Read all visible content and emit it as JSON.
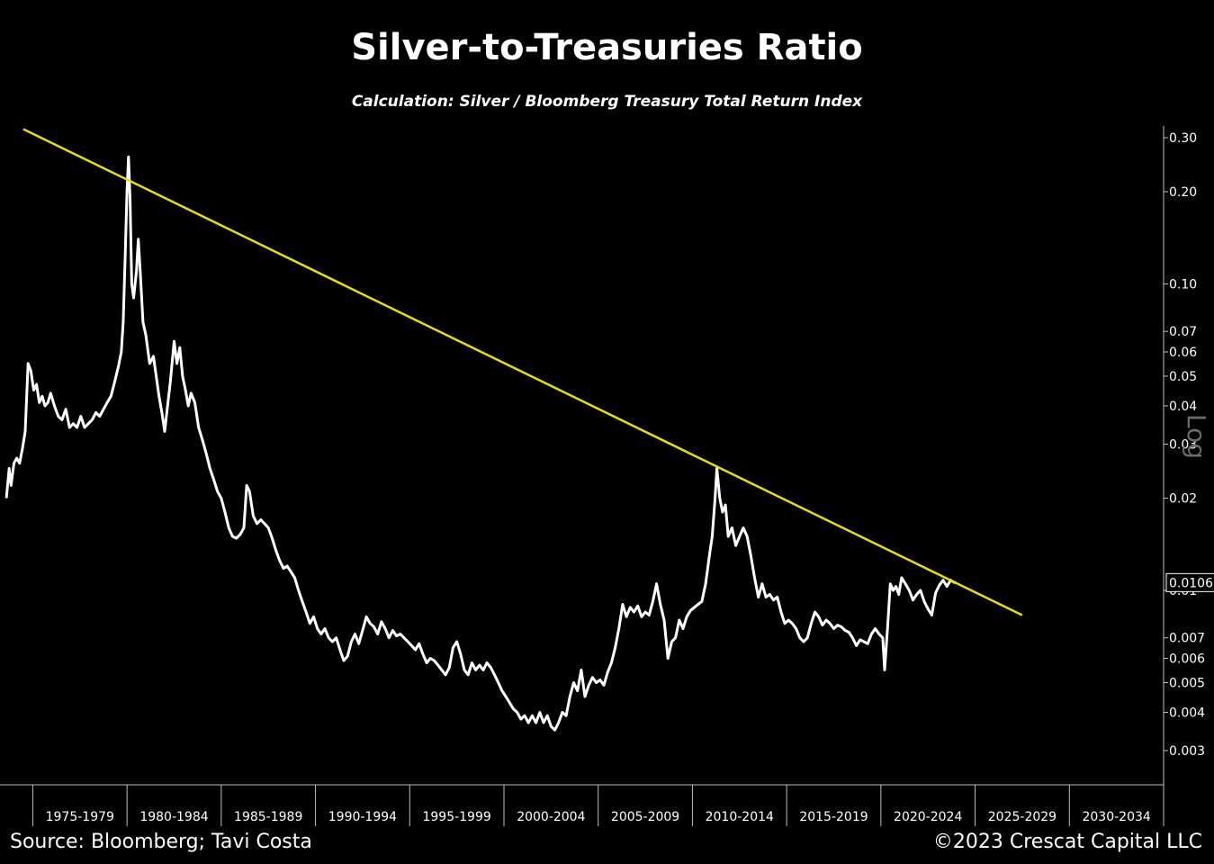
{
  "header": {
    "title": "Silver-to-Treasuries Ratio",
    "subtitle": "Calculation: Silver / Bloomberg Treasury Total Return Index"
  },
  "footer": {
    "source": "Source: Bloomberg; Tavi Costa",
    "copyright": "©2023 Crescat Capital LLC"
  },
  "colors": {
    "background": "#000000",
    "series": "#ffffff",
    "trendline": "#e8e000",
    "axis": "#bfbfbf"
  },
  "chart_data": {
    "type": "line",
    "title": "Silver-to-Treasuries Ratio",
    "subtitle": "Calculation: Silver / Bloomberg Treasury Total Return Index",
    "xlabel": "",
    "ylabel": "",
    "yscale": "log",
    "scale_label": "Log",
    "xlim": [
      1973.5,
      2035
    ],
    "ylim": [
      0.0026,
      0.34
    ],
    "x_categories": [
      "1975-1979",
      "1980-1984",
      "1985-1989",
      "1990-1994",
      "1995-1999",
      "2000-2004",
      "2005-2009",
      "2010-2014",
      "2015-2019",
      "2020-2024",
      "2025-2029",
      "2030-2034"
    ],
    "y_ticks": [
      {
        "value": 0.3,
        "label": "0.30"
      },
      {
        "value": 0.2,
        "label": "0.20"
      },
      {
        "value": 0.1,
        "label": "0.10"
      },
      {
        "value": 0.07,
        "label": "0.07"
      },
      {
        "value": 0.06,
        "label": "0.06"
      },
      {
        "value": 0.05,
        "label": "0.05"
      },
      {
        "value": 0.04,
        "label": "0.04"
      },
      {
        "value": 0.03,
        "label": "0.03"
      },
      {
        "value": 0.02,
        "label": "0.02"
      },
      {
        "value": 0.01,
        "label": "0.01"
      },
      {
        "value": 0.007,
        "label": "0.007"
      },
      {
        "value": 0.006,
        "label": "0.006"
      },
      {
        "value": 0.005,
        "label": "0.005"
      },
      {
        "value": 0.004,
        "label": "0.004"
      },
      {
        "value": 0.003,
        "label": "0.003"
      }
    ],
    "last_value_label": "0.0106",
    "last_value": 0.0106,
    "grid": false,
    "series": [
      {
        "values": [
          [
            1973.6,
            0.02
          ],
          [
            1973.75,
            0.025
          ],
          [
            1973.85,
            0.022
          ],
          [
            1974.0,
            0.026
          ],
          [
            1974.15,
            0.027
          ],
          [
            1974.3,
            0.026
          ],
          [
            1974.45,
            0.029
          ],
          [
            1974.6,
            0.033
          ],
          [
            1974.75,
            0.055
          ],
          [
            1974.9,
            0.052
          ],
          [
            1975.05,
            0.045
          ],
          [
            1975.2,
            0.047
          ],
          [
            1975.35,
            0.041
          ],
          [
            1975.5,
            0.043
          ],
          [
            1975.65,
            0.04
          ],
          [
            1975.8,
            0.041
          ],
          [
            1975.95,
            0.044
          ],
          [
            1976.15,
            0.04
          ],
          [
            1976.35,
            0.037
          ],
          [
            1976.55,
            0.036
          ],
          [
            1976.75,
            0.039
          ],
          [
            1976.95,
            0.034
          ],
          [
            1977.15,
            0.035
          ],
          [
            1977.35,
            0.034
          ],
          [
            1977.55,
            0.037
          ],
          [
            1977.75,
            0.034
          ],
          [
            1977.95,
            0.035
          ],
          [
            1978.15,
            0.036
          ],
          [
            1978.35,
            0.038
          ],
          [
            1978.55,
            0.037
          ],
          [
            1978.75,
            0.039
          ],
          [
            1978.95,
            0.041
          ],
          [
            1979.15,
            0.043
          ],
          [
            1979.35,
            0.048
          ],
          [
            1979.55,
            0.054
          ],
          [
            1979.7,
            0.06
          ],
          [
            1979.8,
            0.075
          ],
          [
            1979.9,
            0.12
          ],
          [
            1980.0,
            0.2
          ],
          [
            1980.08,
            0.26
          ],
          [
            1980.16,
            0.19
          ],
          [
            1980.25,
            0.1
          ],
          [
            1980.35,
            0.09
          ],
          [
            1980.5,
            0.11
          ],
          [
            1980.6,
            0.14
          ],
          [
            1980.7,
            0.11
          ],
          [
            1980.85,
            0.075
          ],
          [
            1981.0,
            0.068
          ],
          [
            1981.2,
            0.055
          ],
          [
            1981.4,
            0.058
          ],
          [
            1981.55,
            0.05
          ],
          [
            1981.7,
            0.043
          ],
          [
            1981.85,
            0.038
          ],
          [
            1982.0,
            0.033
          ],
          [
            1982.15,
            0.04
          ],
          [
            1982.3,
            0.048
          ],
          [
            1982.5,
            0.065
          ],
          [
            1982.65,
            0.055
          ],
          [
            1982.8,
            0.062
          ],
          [
            1982.95,
            0.05
          ],
          [
            1983.1,
            0.045
          ],
          [
            1983.25,
            0.04
          ],
          [
            1983.4,
            0.044
          ],
          [
            1983.6,
            0.041
          ],
          [
            1983.8,
            0.034
          ],
          [
            1984.0,
            0.031
          ],
          [
            1984.2,
            0.028
          ],
          [
            1984.4,
            0.025
          ],
          [
            1984.6,
            0.023
          ],
          [
            1984.8,
            0.021
          ],
          [
            1985.0,
            0.02
          ],
          [
            1985.2,
            0.018
          ],
          [
            1985.4,
            0.016
          ],
          [
            1985.6,
            0.015
          ],
          [
            1985.8,
            0.0148
          ],
          [
            1986.0,
            0.0152
          ],
          [
            1986.2,
            0.016
          ],
          [
            1986.35,
            0.022
          ],
          [
            1986.5,
            0.021
          ],
          [
            1986.7,
            0.0175
          ],
          [
            1986.9,
            0.0165
          ],
          [
            1987.1,
            0.017
          ],
          [
            1987.3,
            0.0165
          ],
          [
            1987.5,
            0.016
          ],
          [
            1987.7,
            0.0148
          ],
          [
            1987.9,
            0.0135
          ],
          [
            1988.1,
            0.0125
          ],
          [
            1988.3,
            0.0118
          ],
          [
            1988.5,
            0.012
          ],
          [
            1988.7,
            0.0115
          ],
          [
            1988.9,
            0.011
          ],
          [
            1989.1,
            0.01
          ],
          [
            1989.3,
            0.0092
          ],
          [
            1989.5,
            0.0085
          ],
          [
            1989.7,
            0.0078
          ],
          [
            1989.9,
            0.0082
          ],
          [
            1990.1,
            0.0075
          ],
          [
            1990.3,
            0.0072
          ],
          [
            1990.5,
            0.0075
          ],
          [
            1990.7,
            0.007
          ],
          [
            1990.9,
            0.0068
          ],
          [
            1991.1,
            0.007
          ],
          [
            1991.3,
            0.0064
          ],
          [
            1991.5,
            0.0059
          ],
          [
            1991.7,
            0.0061
          ],
          [
            1991.9,
            0.0068
          ],
          [
            1992.1,
            0.0072
          ],
          [
            1992.3,
            0.0067
          ],
          [
            1992.5,
            0.0074
          ],
          [
            1992.7,
            0.0082
          ],
          [
            1992.9,
            0.0078
          ],
          [
            1993.1,
            0.0076
          ],
          [
            1993.3,
            0.0072
          ],
          [
            1993.5,
            0.0079
          ],
          [
            1993.7,
            0.0075
          ],
          [
            1993.9,
            0.007
          ],
          [
            1994.1,
            0.0074
          ],
          [
            1994.3,
            0.0071
          ],
          [
            1994.5,
            0.0072
          ],
          [
            1994.7,
            0.007
          ],
          [
            1994.9,
            0.0068
          ],
          [
            1995.1,
            0.0066
          ],
          [
            1995.3,
            0.0064
          ],
          [
            1995.5,
            0.0067
          ],
          [
            1995.7,
            0.0062
          ],
          [
            1995.9,
            0.0058
          ],
          [
            1996.1,
            0.006
          ],
          [
            1996.3,
            0.0059
          ],
          [
            1996.5,
            0.0057
          ],
          [
            1996.7,
            0.0055
          ],
          [
            1996.9,
            0.0053
          ],
          [
            1997.1,
            0.0056
          ],
          [
            1997.3,
            0.0065
          ],
          [
            1997.5,
            0.0068
          ],
          [
            1997.7,
            0.0062
          ],
          [
            1997.9,
            0.0055
          ],
          [
            1998.1,
            0.0053
          ],
          [
            1998.3,
            0.0058
          ],
          [
            1998.5,
            0.0055
          ],
          [
            1998.7,
            0.0057
          ],
          [
            1998.9,
            0.0055
          ],
          [
            1999.1,
            0.0058
          ],
          [
            1999.3,
            0.0056
          ],
          [
            1999.5,
            0.0053
          ],
          [
            1999.7,
            0.005
          ],
          [
            1999.9,
            0.0047
          ],
          [
            2000.1,
            0.0045
          ],
          [
            2000.3,
            0.0043
          ],
          [
            2000.5,
            0.0041
          ],
          [
            2000.7,
            0.004
          ],
          [
            2000.9,
            0.0038
          ],
          [
            2001.1,
            0.0039
          ],
          [
            2001.3,
            0.0037
          ],
          [
            2001.5,
            0.0039
          ],
          [
            2001.7,
            0.0037
          ],
          [
            2001.9,
            0.004
          ],
          [
            2002.1,
            0.0037
          ],
          [
            2002.3,
            0.0039
          ],
          [
            2002.5,
            0.0036
          ],
          [
            2002.7,
            0.0035
          ],
          [
            2002.9,
            0.0037
          ],
          [
            2003.1,
            0.004
          ],
          [
            2003.3,
            0.0039
          ],
          [
            2003.5,
            0.0045
          ],
          [
            2003.7,
            0.005
          ],
          [
            2003.9,
            0.0047
          ],
          [
            2004.1,
            0.0055
          ],
          [
            2004.3,
            0.0045
          ],
          [
            2004.5,
            0.0049
          ],
          [
            2004.7,
            0.0052
          ],
          [
            2004.9,
            0.005
          ],
          [
            2005.1,
            0.0051
          ],
          [
            2005.3,
            0.0049
          ],
          [
            2005.5,
            0.0054
          ],
          [
            2005.7,
            0.0058
          ],
          [
            2005.9,
            0.0065
          ],
          [
            2006.1,
            0.0075
          ],
          [
            2006.3,
            0.009
          ],
          [
            2006.5,
            0.0082
          ],
          [
            2006.7,
            0.0088
          ],
          [
            2006.9,
            0.0085
          ],
          [
            2007.1,
            0.0089
          ],
          [
            2007.3,
            0.0082
          ],
          [
            2007.5,
            0.0085
          ],
          [
            2007.7,
            0.0083
          ],
          [
            2007.9,
            0.0092
          ],
          [
            2008.1,
            0.0105
          ],
          [
            2008.3,
            0.009
          ],
          [
            2008.5,
            0.008
          ],
          [
            2008.7,
            0.006
          ],
          [
            2008.9,
            0.0068
          ],
          [
            2009.1,
            0.007
          ],
          [
            2009.3,
            0.008
          ],
          [
            2009.5,
            0.0075
          ],
          [
            2009.7,
            0.0082
          ],
          [
            2009.9,
            0.0086
          ],
          [
            2010.1,
            0.0088
          ],
          [
            2010.3,
            0.009
          ],
          [
            2010.5,
            0.0092
          ],
          [
            2010.7,
            0.0105
          ],
          [
            2010.9,
            0.013
          ],
          [
            2011.05,
            0.015
          ],
          [
            2011.2,
            0.02
          ],
          [
            2011.3,
            0.025
          ],
          [
            2011.45,
            0.02
          ],
          [
            2011.6,
            0.018
          ],
          [
            2011.75,
            0.019
          ],
          [
            2011.9,
            0.015
          ],
          [
            2012.1,
            0.016
          ],
          [
            2012.3,
            0.014
          ],
          [
            2012.5,
            0.015
          ],
          [
            2012.7,
            0.016
          ],
          [
            2012.9,
            0.015
          ],
          [
            2013.1,
            0.013
          ],
          [
            2013.3,
            0.011
          ],
          [
            2013.5,
            0.0095
          ],
          [
            2013.7,
            0.0105
          ],
          [
            2013.9,
            0.0095
          ],
          [
            2014.1,
            0.0097
          ],
          [
            2014.3,
            0.0093
          ],
          [
            2014.5,
            0.0095
          ],
          [
            2014.7,
            0.0085
          ],
          [
            2014.9,
            0.0078
          ],
          [
            2015.1,
            0.008
          ],
          [
            2015.3,
            0.0078
          ],
          [
            2015.5,
            0.0075
          ],
          [
            2015.7,
            0.007
          ],
          [
            2015.9,
            0.0068
          ],
          [
            2016.1,
            0.007
          ],
          [
            2016.3,
            0.0078
          ],
          [
            2016.5,
            0.0085
          ],
          [
            2016.7,
            0.0082
          ],
          [
            2016.9,
            0.0077
          ],
          [
            2017.1,
            0.008
          ],
          [
            2017.3,
            0.0078
          ],
          [
            2017.5,
            0.0075
          ],
          [
            2017.7,
            0.0077
          ],
          [
            2017.9,
            0.0076
          ],
          [
            2018.1,
            0.0074
          ],
          [
            2018.3,
            0.0073
          ],
          [
            2018.5,
            0.007
          ],
          [
            2018.7,
            0.0066
          ],
          [
            2018.9,
            0.0069
          ],
          [
            2019.1,
            0.0068
          ],
          [
            2019.3,
            0.0067
          ],
          [
            2019.5,
            0.0072
          ],
          [
            2019.7,
            0.0075
          ],
          [
            2019.9,
            0.0072
          ],
          [
            2020.1,
            0.007
          ],
          [
            2020.2,
            0.0055
          ],
          [
            2020.35,
            0.0075
          ],
          [
            2020.5,
            0.0105
          ],
          [
            2020.65,
            0.01
          ],
          [
            2020.8,
            0.0103
          ],
          [
            2020.95,
            0.0097
          ],
          [
            2021.1,
            0.011
          ],
          [
            2021.3,
            0.0105
          ],
          [
            2021.5,
            0.01
          ],
          [
            2021.7,
            0.0093
          ],
          [
            2021.9,
            0.0097
          ],
          [
            2022.1,
            0.01
          ],
          [
            2022.3,
            0.0092
          ],
          [
            2022.5,
            0.0087
          ],
          [
            2022.7,
            0.0083
          ],
          [
            2022.9,
            0.0098
          ],
          [
            2023.1,
            0.0104
          ],
          [
            2023.3,
            0.0108
          ],
          [
            2023.5,
            0.0103
          ],
          [
            2023.7,
            0.0108
          ],
          [
            2023.9,
            0.0106
          ],
          [
            2024.0,
            0.0106
          ]
        ]
      }
    ],
    "trendline": {
      "x": [
        1974.5,
        2027.5
      ],
      "y": [
        0.32,
        0.0083
      ]
    }
  }
}
